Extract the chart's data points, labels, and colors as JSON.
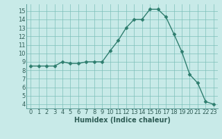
{
  "x": [
    0,
    1,
    2,
    3,
    4,
    5,
    6,
    7,
    8,
    9,
    10,
    11,
    12,
    13,
    14,
    15,
    16,
    17,
    18,
    19,
    20,
    21,
    22,
    23
  ],
  "y": [
    8.5,
    8.5,
    8.5,
    8.5,
    9.0,
    8.8,
    8.8,
    9.0,
    9.0,
    9.0,
    10.3,
    11.5,
    13.0,
    14.0,
    14.0,
    15.2,
    15.2,
    14.3,
    12.3,
    10.2,
    7.5,
    6.5,
    4.3,
    4.0
  ],
  "line_color": "#2e7d6e",
  "marker": "D",
  "marker_size": 2.5,
  "bg_color": "#c8eae8",
  "grid_color": "#7dbfba",
  "xlabel": "Humidex (Indice chaleur)",
  "xlim": [
    -0.5,
    23.5
  ],
  "ylim": [
    3.5,
    15.8
  ],
  "yticks": [
    4,
    5,
    6,
    7,
    8,
    9,
    10,
    11,
    12,
    13,
    14,
    15
  ],
  "xticks": [
    0,
    1,
    2,
    3,
    4,
    5,
    6,
    7,
    8,
    9,
    10,
    11,
    12,
    13,
    14,
    15,
    16,
    17,
    18,
    19,
    20,
    21,
    22,
    23
  ],
  "label_fontsize": 7,
  "tick_fontsize": 6,
  "tick_color": "#2e5c55",
  "spine_color": "#5a9e98"
}
